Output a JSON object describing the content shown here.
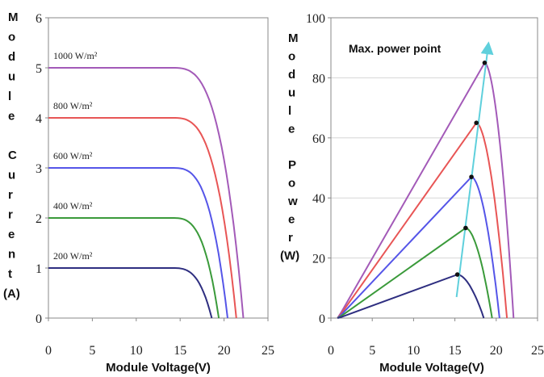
{
  "chart_data": [
    {
      "type": "line",
      "title": "",
      "xlabel": "Module Voltage(V)",
      "ylabel_chars": [
        "M",
        "o",
        "d",
        "u",
        "l",
        "e",
        "",
        "C",
        "u",
        "r",
        "r",
        "e",
        "n",
        "t",
        "(A)"
      ],
      "xlim": [
        0,
        25
      ],
      "ylim": [
        0,
        6
      ],
      "x_ticks": [
        "0",
        "5",
        "10",
        "15",
        "20",
        "25"
      ],
      "y_ticks": [
        "0",
        "1",
        "2",
        "3",
        "4",
        "5",
        "6"
      ],
      "grid": false,
      "series": [
        {
          "name": "1000 W/m²",
          "color": "#a35ab8",
          "isc": 5,
          "knee": 14,
          "voc": 22.2
        },
        {
          "name": "800 W/m²",
          "color": "#e85555",
          "isc": 4,
          "knee": 14,
          "voc": 21.4
        },
        {
          "name": "600 W/m²",
          "color": "#5555e8",
          "isc": 3,
          "knee": 14,
          "voc": 20.4
        },
        {
          "name": "400 W/m²",
          "color": "#3a9a3a",
          "isc": 2,
          "knee": 14,
          "voc": 19.4
        },
        {
          "name": "200 W/m²",
          "color": "#2e2e80",
          "isc": 1,
          "knee": 14,
          "voc": 18.6
        }
      ]
    },
    {
      "type": "line",
      "title": "",
      "xlabel": "Module Voltage(V)",
      "ylabel_chars": [
        "M",
        "o",
        "d",
        "u",
        "l",
        "e",
        "",
        "P",
        "o",
        "w",
        "e",
        "r",
        "(W)"
      ],
      "xlim": [
        0,
        25
      ],
      "ylim": [
        0,
        100
      ],
      "x_ticks": [
        "0",
        "5",
        "10",
        "15",
        "20",
        "25"
      ],
      "y_ticks": [
        "0",
        "20",
        "40",
        "60",
        "80",
        "100"
      ],
      "grid": true,
      "annotation": "Max. power point",
      "series": [
        {
          "color": "#a35ab8",
          "start": [
            0.8,
            0
          ],
          "mpp": [
            18.6,
            85
          ],
          "voc": 22.1
        },
        {
          "color": "#e85555",
          "start": [
            0.8,
            0
          ],
          "mpp": [
            17.6,
            65
          ],
          "voc": 21.3
        },
        {
          "color": "#5555e8",
          "start": [
            0.8,
            0
          ],
          "mpp": [
            17.0,
            47
          ],
          "voc": 20.4
        },
        {
          "color": "#3a9a3a",
          "start": [
            0.8,
            0
          ],
          "mpp": [
            16.3,
            30
          ],
          "voc": 19.5
        },
        {
          "color": "#2e2e80",
          "start": [
            0.8,
            0
          ],
          "mpp": [
            15.3,
            14.5
          ],
          "voc": 18.5
        }
      ],
      "mpp_line": {
        "color": "#5fd0dc",
        "from": [
          15.2,
          7
        ],
        "to": [
          19.0,
          90
        ]
      }
    }
  ]
}
